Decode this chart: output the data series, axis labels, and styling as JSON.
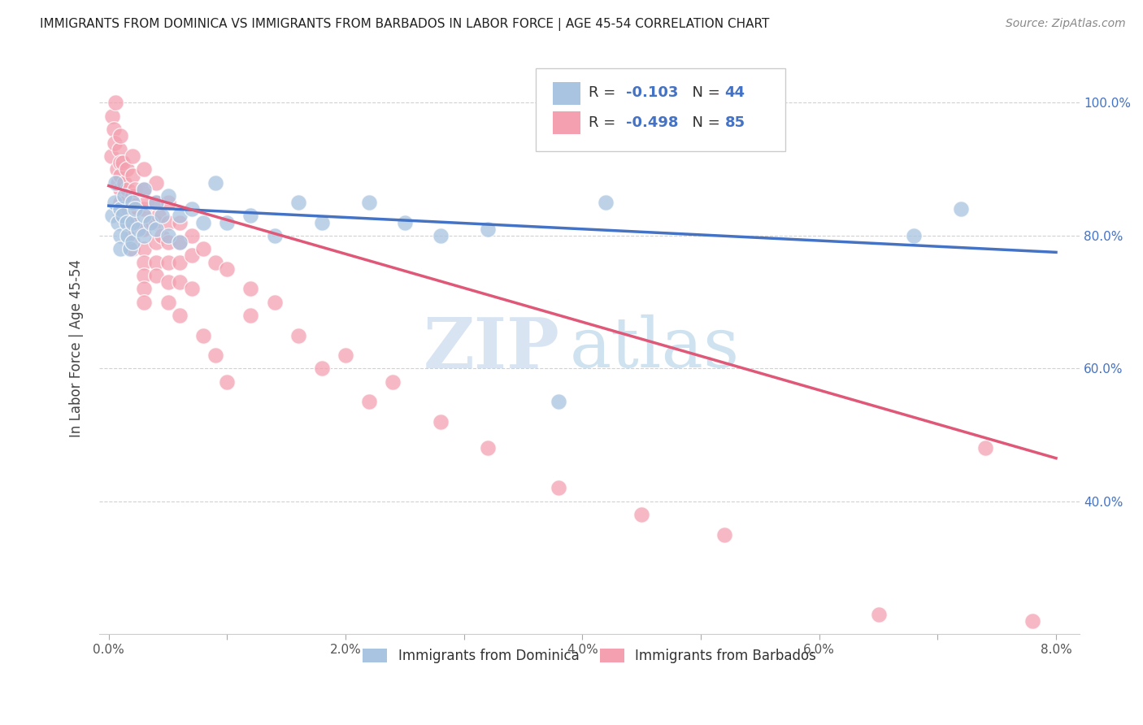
{
  "title": "IMMIGRANTS FROM DOMINICA VS IMMIGRANTS FROM BARBADOS IN LABOR FORCE | AGE 45-54 CORRELATION CHART",
  "source": "Source: ZipAtlas.com",
  "ylabel": "In Labor Force | Age 45-54",
  "dominica_color": "#a8c4e0",
  "barbados_color": "#f4a0b0",
  "dominica_line_color": "#4472c4",
  "barbados_line_color": "#e05878",
  "dominica_R": -0.103,
  "dominica_N": 44,
  "barbados_R": -0.498,
  "barbados_N": 85,
  "watermark_zip": "ZIP",
  "watermark_atlas": "atlas",
  "background_color": "#ffffff",
  "grid_color": "#cccccc",
  "xlim": [
    -0.0008,
    0.082
  ],
  "ylim": [
    0.2,
    1.06
  ],
  "dominica_x": [
    0.0003,
    0.0005,
    0.0006,
    0.0008,
    0.001,
    0.001,
    0.001,
    0.0012,
    0.0013,
    0.0015,
    0.0016,
    0.0018,
    0.002,
    0.002,
    0.002,
    0.0022,
    0.0025,
    0.003,
    0.003,
    0.003,
    0.0035,
    0.004,
    0.004,
    0.0045,
    0.005,
    0.005,
    0.006,
    0.006,
    0.007,
    0.008,
    0.009,
    0.01,
    0.012,
    0.014,
    0.016,
    0.018,
    0.022,
    0.025,
    0.028,
    0.032,
    0.038,
    0.042,
    0.068,
    0.072
  ],
  "dominica_y": [
    0.83,
    0.85,
    0.88,
    0.82,
    0.84,
    0.8,
    0.78,
    0.83,
    0.86,
    0.82,
    0.8,
    0.78,
    0.85,
    0.82,
    0.79,
    0.84,
    0.81,
    0.87,
    0.83,
    0.8,
    0.82,
    0.85,
    0.81,
    0.83,
    0.86,
    0.8,
    0.83,
    0.79,
    0.84,
    0.82,
    0.88,
    0.82,
    0.83,
    0.8,
    0.85,
    0.82,
    0.85,
    0.82,
    0.8,
    0.81,
    0.55,
    0.85,
    0.8,
    0.84
  ],
  "barbados_x": [
    0.0002,
    0.0003,
    0.0004,
    0.0005,
    0.0006,
    0.0007,
    0.0008,
    0.0009,
    0.001,
    0.001,
    0.001,
    0.001,
    0.001,
    0.001,
    0.0012,
    0.0013,
    0.0014,
    0.0015,
    0.0016,
    0.0017,
    0.0018,
    0.002,
    0.002,
    0.002,
    0.002,
    0.002,
    0.002,
    0.0022,
    0.0025,
    0.0028,
    0.003,
    0.003,
    0.003,
    0.003,
    0.003,
    0.003,
    0.003,
    0.003,
    0.003,
    0.0032,
    0.0035,
    0.004,
    0.004,
    0.004,
    0.004,
    0.004,
    0.004,
    0.0042,
    0.0045,
    0.005,
    0.005,
    0.005,
    0.005,
    0.005,
    0.005,
    0.006,
    0.006,
    0.006,
    0.006,
    0.006,
    0.007,
    0.007,
    0.007,
    0.008,
    0.008,
    0.009,
    0.009,
    0.01,
    0.01,
    0.012,
    0.012,
    0.014,
    0.016,
    0.018,
    0.02,
    0.022,
    0.024,
    0.028,
    0.032,
    0.038,
    0.045,
    0.052,
    0.065,
    0.074,
    0.078
  ],
  "barbados_y": [
    0.92,
    0.98,
    0.96,
    0.94,
    1.0,
    0.9,
    0.88,
    0.93,
    0.95,
    0.91,
    0.89,
    0.87,
    0.85,
    0.83,
    0.91,
    0.88,
    0.85,
    0.9,
    0.87,
    0.84,
    0.82,
    0.92,
    0.89,
    0.86,
    0.83,
    0.8,
    0.78,
    0.87,
    0.84,
    0.81,
    0.9,
    0.87,
    0.84,
    0.81,
    0.78,
    0.76,
    0.74,
    0.72,
    0.7,
    0.85,
    0.82,
    0.88,
    0.85,
    0.82,
    0.79,
    0.76,
    0.74,
    0.83,
    0.8,
    0.85,
    0.82,
    0.79,
    0.76,
    0.73,
    0.7,
    0.82,
    0.79,
    0.76,
    0.73,
    0.68,
    0.8,
    0.77,
    0.72,
    0.78,
    0.65,
    0.76,
    0.62,
    0.75,
    0.58,
    0.72,
    0.68,
    0.7,
    0.65,
    0.6,
    0.62,
    0.55,
    0.58,
    0.52,
    0.48,
    0.42,
    0.38,
    0.35,
    0.23,
    0.48,
    0.22
  ]
}
